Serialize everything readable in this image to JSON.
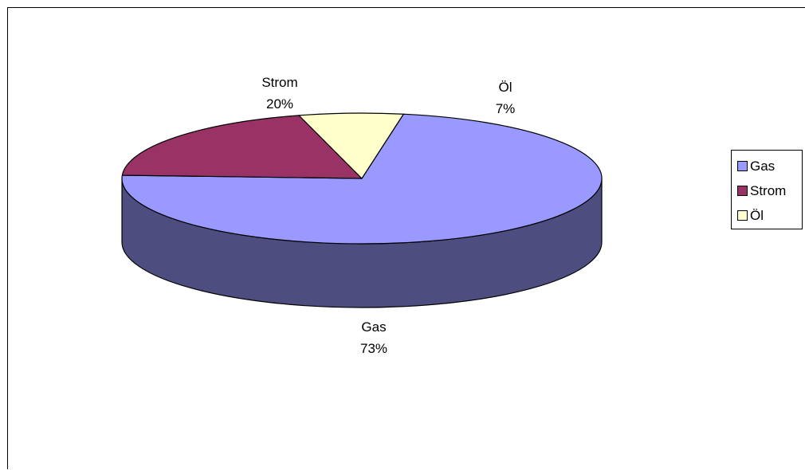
{
  "chart_data": {
    "type": "pie",
    "style": "3d",
    "title": "",
    "categories": [
      "Gas",
      "Strom",
      "Öl"
    ],
    "values": [
      73,
      20,
      7
    ],
    "data_labels": [
      {
        "name": "Gas",
        "percent": "73%"
      },
      {
        "name": "Strom",
        "percent": "20%"
      },
      {
        "name": "Öl",
        "percent": "7%"
      }
    ],
    "colors": {
      "top": [
        "#9999ff",
        "#993366",
        "#ffffcc"
      ],
      "side": [
        "#4d4d80",
        "#4d1a33",
        "#80806a"
      ]
    },
    "legend": {
      "placement": "right",
      "entries": [
        "Gas",
        "Strom",
        "Öl"
      ]
    }
  }
}
